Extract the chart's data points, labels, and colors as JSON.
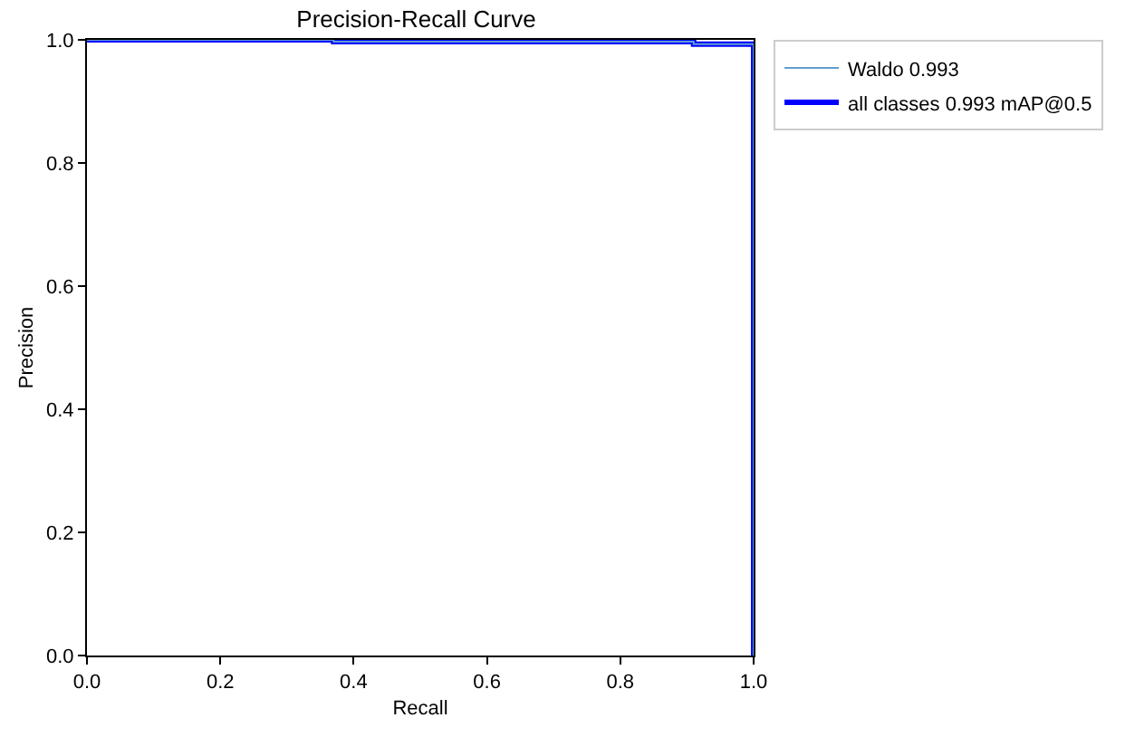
{
  "chart_data": {
    "type": "line",
    "title": "Precision-Recall Curve",
    "xlabel": "Recall",
    "ylabel": "Precision",
    "x": [
      0,
      0.37,
      0.37,
      0.91,
      0.91,
      1.0,
      1.0
    ],
    "series": [
      {
        "name": "Waldo 0.993",
        "color": "#5f9ed1",
        "values": [
          1,
          1,
          0.997,
          0.997,
          0.993,
          0.993,
          0
        ]
      },
      {
        "name": "all classes 0.993 mAP@0.5",
        "color": "#0000ff",
        "values": [
          1,
          1,
          0.997,
          0.997,
          0.993,
          0.993,
          0
        ]
      }
    ],
    "xlim": [
      0,
      1
    ],
    "ylim": [
      0,
      1
    ],
    "xticks": [
      {
        "value": 0,
        "label": "0.0"
      },
      {
        "value": 0.2,
        "label": "0.2"
      },
      {
        "value": 0.4,
        "label": "0.4"
      },
      {
        "value": 0.6,
        "label": "0.6"
      },
      {
        "value": 0.8,
        "label": "0.8"
      },
      {
        "value": 1,
        "label": "1.0"
      }
    ],
    "yticks": [
      {
        "value": 0,
        "label": "0.0"
      },
      {
        "value": 0.2,
        "label": "0.2"
      },
      {
        "value": 0.4,
        "label": "0.4"
      },
      {
        "value": 0.6,
        "label": "0.6"
      },
      {
        "value": 0.8,
        "label": "0.8"
      },
      {
        "value": 1,
        "label": "1.0"
      }
    ],
    "grid": false,
    "legend": "top right",
    "marker": "none",
    "line_style": "solid"
  }
}
